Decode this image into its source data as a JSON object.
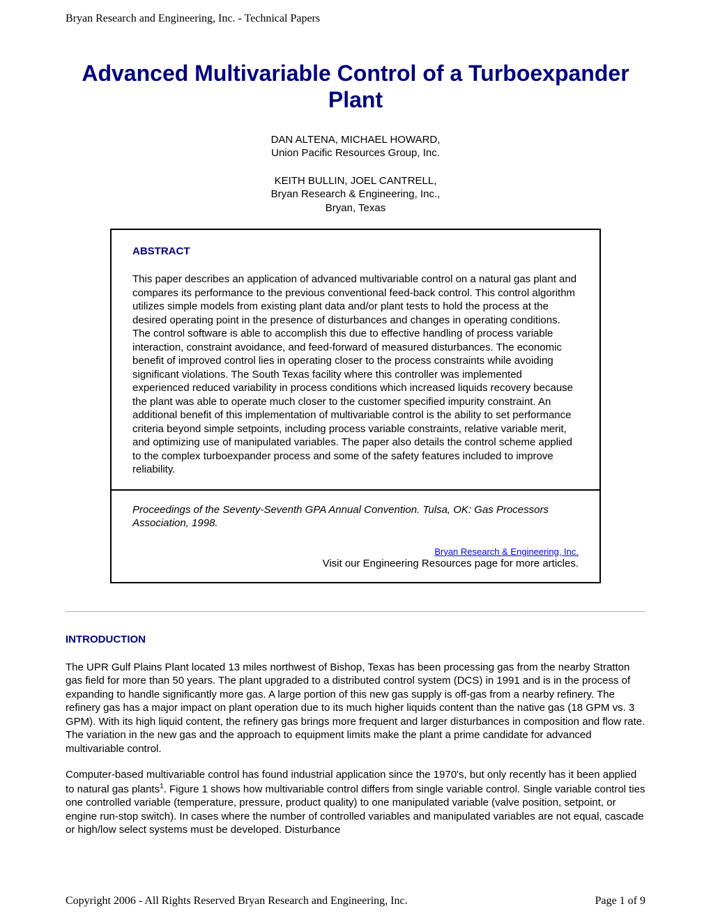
{
  "header": {
    "text": "Bryan Research and Engineering, Inc. - Technical Papers"
  },
  "title": "Advanced Multivariable Control of a Turboexpander Plant",
  "authors": {
    "group1_names": "DAN ALTENA, MICHAEL HOWARD,",
    "group1_affil": "Union Pacific Resources Group, Inc.",
    "group2_names": "KEITH BULLIN, JOEL CANTRELL,",
    "group2_affil1": "Bryan Research & Engineering, Inc.,",
    "group2_affil2": "Bryan, Texas"
  },
  "abstract": {
    "heading": "ABSTRACT",
    "body": "This paper describes an application of advanced multivariable control on a natural gas plant and compares its performance to the previous conventional feed-back control. This control algorithm utilizes simple models from existing plant data and/or plant tests to hold the process at the desired operating point in the presence of disturbances and changes in operating conditions. The control software is able to accomplish this due to effective handling of process variable interaction, constraint avoidance, and feed-forward of measured disturbances. The economic benefit of improved control lies in operating closer to the process constraints while avoiding significant violations. The South Texas facility where this controller was implemented experienced reduced variability in process conditions which increased liquids recovery because the plant was able to operate much closer to the customer specified impurity constraint. An additional benefit of this implementation of multivariable control is the ability to set performance criteria beyond simple setpoints, including process variable constraints, relative variable merit, and optimizing use of manipulated variables. The paper also details the control scheme applied to the complex turboexpander process and some of the safety features included to improve reliability."
  },
  "proceedings": "Proceedings of the Seventy-Seventh GPA Annual Convention. Tulsa, OK: Gas Processors Association, 1998.",
  "link": {
    "text": "Bryan Research & Engineering, Inc.",
    "subtext": "Visit our Engineering Resources page for more articles."
  },
  "introduction": {
    "heading": "INTRODUCTION",
    "para1": "The UPR Gulf Plains Plant located 13 miles northwest of Bishop, Texas has been processing gas from the nearby Stratton gas field for more than 50 years. The plant upgraded to a distributed control system (DCS) in 1991 and is in the process of expanding to handle significantly more gas. A large portion of this new gas supply is off-gas from a nearby refinery. The refinery gas has a major impact on plant operation due to its much higher liquids content than the native gas (18 GPM vs. 3 GPM). With its high liquid content, the refinery gas brings more frequent and larger disturbances in composition and flow rate. The variation in the new gas and the approach to equipment limits make the plant a prime candidate for advanced multivariable control.",
    "para2_a": "Computer-based multivariable control has found industrial application since the 1970's, but only recently has it been applied to natural gas plants",
    "para2_sup": "1",
    "para2_b": ". Figure 1 shows how multivariable control differs from single variable control. Single variable control ties one controlled variable (temperature, pressure, product quality) to one manipulated variable (valve position, setpoint, or engine run-stop switch). In cases where the number of controlled variables and manipulated variables are not equal, cascade or high/low select systems must be developed. Disturbance"
  },
  "footer": {
    "copyright": "Copyright 2006 - All Rights Reserved Bryan Research and Engineering, Inc.",
    "page": "Page 1 of 9"
  },
  "colors": {
    "heading_color": "#000080",
    "link_color": "#0000ee",
    "text_color": "#000000",
    "background": "#ffffff"
  },
  "typography": {
    "title_fontsize": 32,
    "body_fontsize": 15,
    "header_fontsize": 16,
    "title_font": "Arial",
    "body_font": "Arial",
    "header_font": "Times New Roman"
  }
}
